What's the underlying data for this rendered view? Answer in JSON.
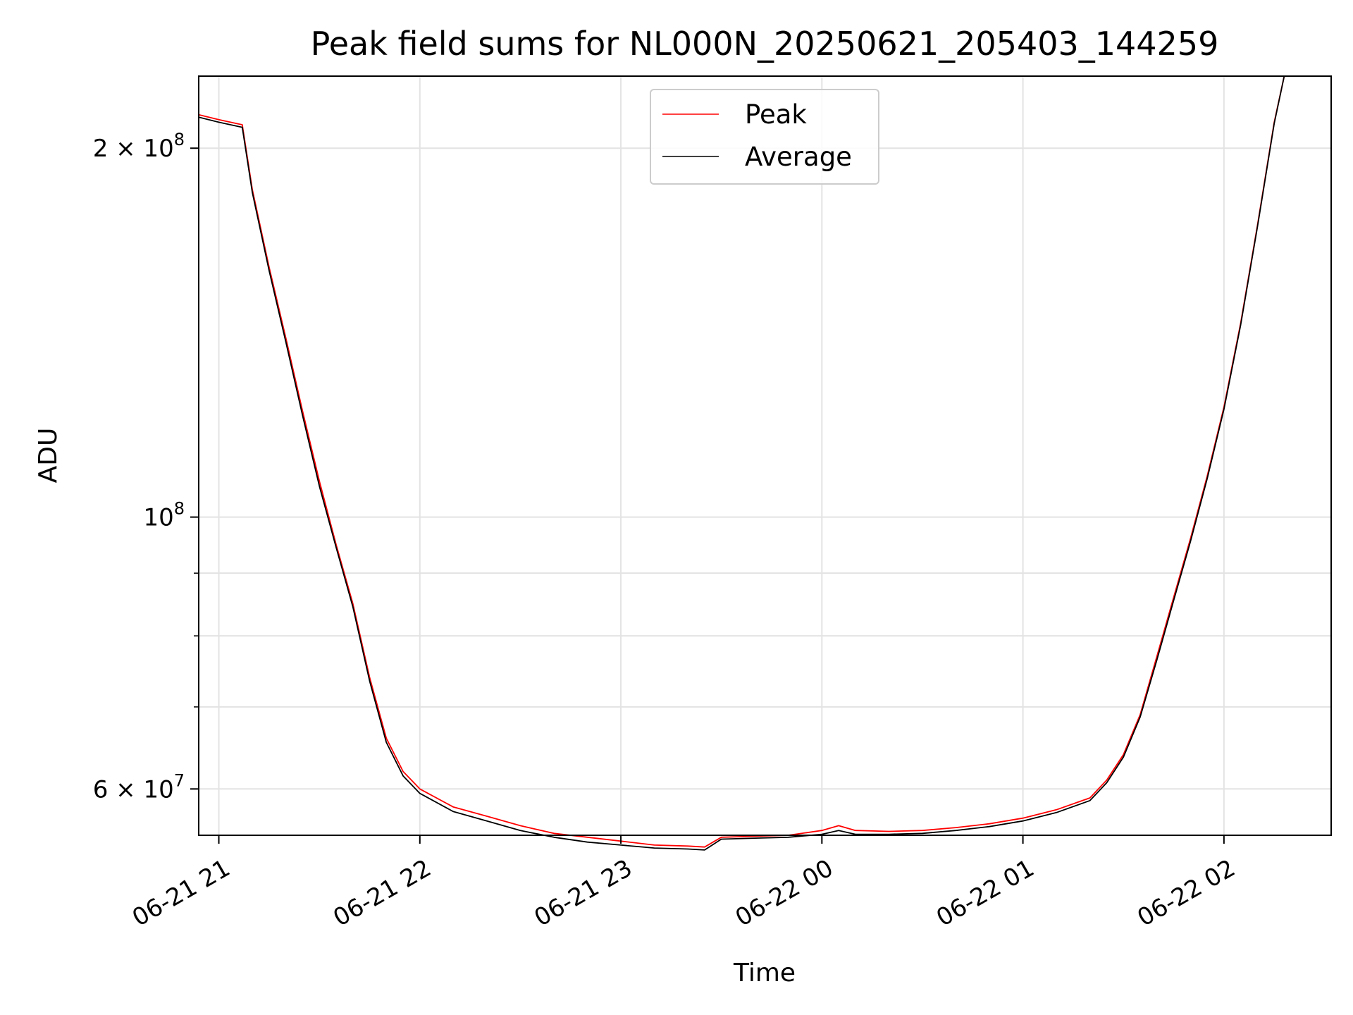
{
  "chart_data": {
    "type": "line",
    "title": "Peak field sums for NL000N_20250621_205403_144259",
    "xlabel": "Time",
    "ylabel": "ADU",
    "x_range": [
      "2025-06-21 20:54",
      "2025-06-22 02:32"
    ],
    "y_range": [
      55000000,
      229000000
    ],
    "y_scale": "log",
    "grid": true,
    "legend_position": "upper center",
    "x_tick_labels": [
      "06-21 21",
      "06-21 22",
      "06-21 23",
      "06-22 00",
      "06-22 01",
      "06-22 02"
    ],
    "x_tick_values": [
      "2025-06-21 21:00",
      "2025-06-21 22:00",
      "2025-06-21 23:00",
      "2025-06-22 00:00",
      "2025-06-22 01:00",
      "2025-06-22 02:00"
    ],
    "y_major_ticks": [
      {
        "value": 60000000,
        "mantissa": "6",
        "base": "10",
        "exp": "7"
      },
      {
        "value": 100000000,
        "mantissa": "",
        "base": "10",
        "exp": "8"
      },
      {
        "value": 200000000,
        "mantissa": "2",
        "base": "10",
        "exp": "8"
      }
    ],
    "y_minor_ticks": [
      70000000,
      80000000,
      90000000
    ],
    "x": [
      "2025-06-21 20:54",
      "2025-06-21 21:00",
      "2025-06-21 21:07",
      "2025-06-21 21:10",
      "2025-06-21 21:15",
      "2025-06-21 21:20",
      "2025-06-21 21:25",
      "2025-06-21 21:30",
      "2025-06-21 21:35",
      "2025-06-21 21:40",
      "2025-06-21 21:45",
      "2025-06-21 21:50",
      "2025-06-21 21:55",
      "2025-06-21 22:00",
      "2025-06-21 22:10",
      "2025-06-21 22:20",
      "2025-06-21 22:30",
      "2025-06-21 22:40",
      "2025-06-21 22:50",
      "2025-06-21 23:00",
      "2025-06-21 23:10",
      "2025-06-21 23:20",
      "2025-06-21 23:25",
      "2025-06-21 23:30",
      "2025-06-21 23:40",
      "2025-06-21 23:50",
      "2025-06-22 00:00",
      "2025-06-22 00:05",
      "2025-06-22 00:10",
      "2025-06-22 00:20",
      "2025-06-22 00:30",
      "2025-06-22 00:40",
      "2025-06-22 00:50",
      "2025-06-22 01:00",
      "2025-06-22 01:10",
      "2025-06-22 01:20",
      "2025-06-22 01:25",
      "2025-06-22 01:30",
      "2025-06-22 01:35",
      "2025-06-22 01:40",
      "2025-06-22 01:45",
      "2025-06-22 01:50",
      "2025-06-22 01:55",
      "2025-06-22 02:00",
      "2025-06-22 02:05",
      "2025-06-22 02:10",
      "2025-06-22 02:15",
      "2025-06-22 02:18"
    ],
    "series": [
      {
        "name": "Peak",
        "color": "#ff0000",
        "values": [
          213000000,
          211000000,
          209000000,
          185000000,
          160000000,
          140000000,
          122000000,
          107000000,
          95000000,
          85000000,
          74000000,
          66000000,
          62000000,
          60000000,
          58000000,
          57000000,
          56000000,
          55200000,
          54800000,
          54400000,
          54000000,
          53900000,
          53800000,
          54800000,
          54900000,
          55000000,
          55500000,
          56000000,
          55500000,
          55400000,
          55500000,
          55800000,
          56200000,
          56800000,
          57700000,
          59000000,
          61000000,
          64000000,
          69000000,
          77000000,
          86000000,
          96000000,
          108000000,
          123000000,
          144000000,
          173000000,
          210000000,
          229000000
        ]
      },
      {
        "name": "Average",
        "color": "#000000",
        "values": [
          212000000,
          210000000,
          208000000,
          184000000,
          159000000,
          139000000,
          121000000,
          106000000,
          94500000,
          84500000,
          73500000,
          65500000,
          61500000,
          59500000,
          57500000,
          56500000,
          55500000,
          54800000,
          54300000,
          54000000,
          53700000,
          53600000,
          53500000,
          54600000,
          54700000,
          54800000,
          55100000,
          55500000,
          55100000,
          55100000,
          55200000,
          55500000,
          55900000,
          56500000,
          57400000,
          58700000,
          60700000,
          63700000,
          68700000,
          76500000,
          85500000,
          95500000,
          107500000,
          122500000,
          143500000,
          172500000,
          209500000,
          229000000
        ]
      }
    ]
  }
}
